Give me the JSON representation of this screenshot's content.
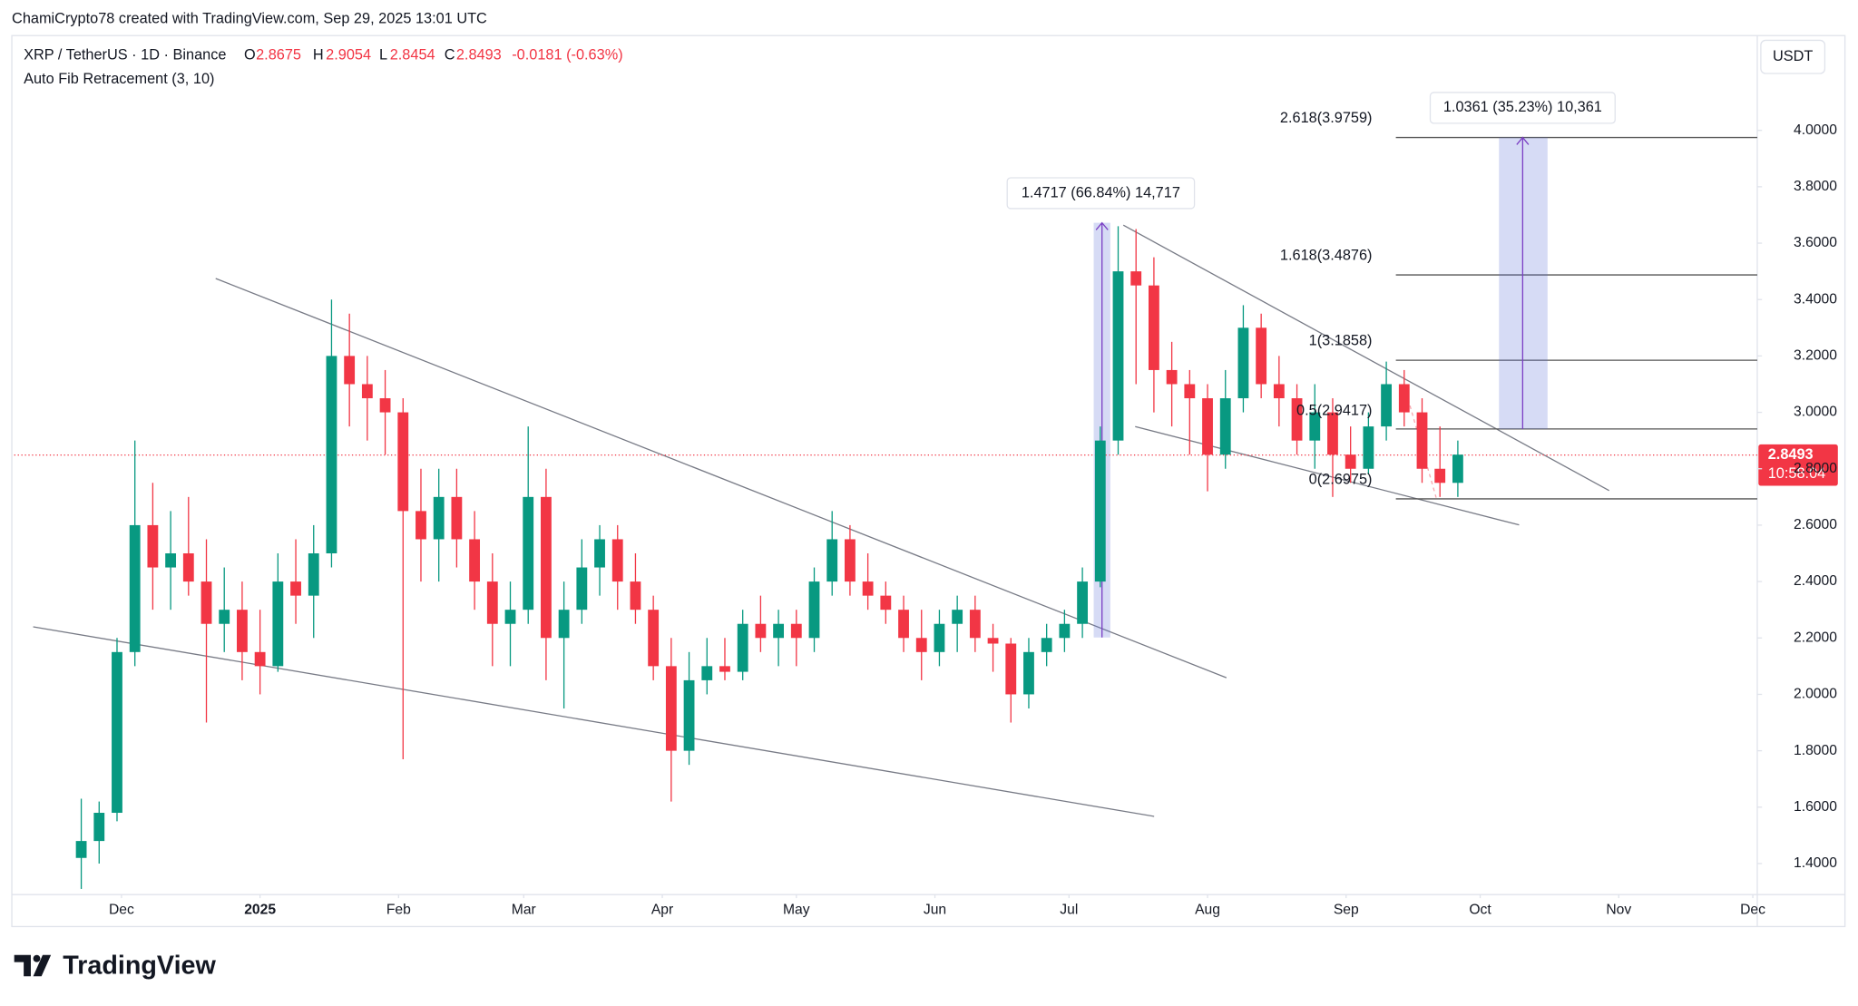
{
  "header": {
    "credit": "ChamiCrypto78 created with TradingView.com, Sep 29, 2025 13:01 UTC",
    "symbol": "XRP / TetherUS · 1D · Binance",
    "o_label": "O",
    "o": "2.8675",
    "h_label": "H",
    "h": "2.9054",
    "l_label": "L",
    "l": "2.8454",
    "c_label": "C",
    "c": "2.8493",
    "change": "-0.0181 (-0.63%)",
    "indicator": "Auto Fib Retracement (3, 10)",
    "currency": "USDT"
  },
  "price_tag": {
    "price": "2.8493",
    "countdown": "10:58:04"
  },
  "measures": [
    "1.4717 (66.84%) 14,717",
    "1.0361 (35.23%) 10,361"
  ],
  "fib_labels": [
    "2.618(3.9759)",
    "1.618(3.4876)",
    "1(3.1858)",
    "0.5(2.9417)",
    "0(2.6975)"
  ],
  "logo": "TradingView",
  "chart_data": {
    "type": "candlestick",
    "up_color": "#089981",
    "down_color": "#f23645",
    "grid": false,
    "xlim": [
      -24,
      366
    ],
    "xticks": [
      {
        "value": 0,
        "label": "Dec"
      },
      {
        "value": 31,
        "label": "2025"
      },
      {
        "value": 62,
        "label": "Feb"
      },
      {
        "value": 90,
        "label": "Mar"
      },
      {
        "value": 121,
        "label": "Apr"
      },
      {
        "value": 151,
        "label": "May"
      },
      {
        "value": 182,
        "label": "Jun"
      },
      {
        "value": 212,
        "label": "Jul"
      },
      {
        "value": 243,
        "label": "Aug"
      },
      {
        "value": 274,
        "label": "Sep"
      },
      {
        "value": 304,
        "label": "Oct"
      },
      {
        "value": 335,
        "label": "Nov"
      },
      {
        "value": 365,
        "label": "Dec"
      }
    ],
    "ylim": [
      1.29,
      4.336
    ],
    "yticks": [
      {
        "value": 1.4,
        "label": "1.4000"
      },
      {
        "value": 1.6,
        "label": "1.6000"
      },
      {
        "value": 1.8,
        "label": "1.8000"
      },
      {
        "value": 2,
        "label": "2.0000"
      },
      {
        "value": 2.2,
        "label": "2.2000"
      },
      {
        "value": 2.4,
        "label": "2.4000"
      },
      {
        "value": 2.6,
        "label": "2.6000"
      },
      {
        "value": 2.8,
        "label": "2.8000"
      },
      {
        "value": 3,
        "label": "3.0000"
      },
      {
        "value": 3.2,
        "label": "3.2000"
      },
      {
        "value": 3.4,
        "label": "3.4000"
      },
      {
        "value": 3.6,
        "label": "3.6000"
      },
      {
        "value": 3.8,
        "label": "3.8000"
      },
      {
        "value": 4,
        "label": "4.0000"
      }
    ],
    "x": [
      -9,
      -5,
      -1,
      3,
      7,
      11,
      15,
      19,
      23,
      27,
      31,
      35,
      39,
      43,
      47,
      51,
      55,
      59,
      63,
      67,
      71,
      75,
      79,
      83,
      87,
      91,
      95,
      99,
      103,
      107,
      111,
      115,
      119,
      123,
      127,
      131,
      135,
      139,
      143,
      147,
      151,
      155,
      159,
      163,
      167,
      171,
      175,
      179,
      183,
      187,
      191,
      195,
      199,
      203,
      207,
      211,
      215,
      219,
      223,
      227,
      231,
      235,
      239,
      243,
      247,
      251,
      255,
      259,
      263,
      267,
      271,
      275,
      279,
      283,
      287,
      291,
      295,
      299
    ],
    "open": [
      1.42,
      1.48,
      1.58,
      2.15,
      2.6,
      2.45,
      2.5,
      2.4,
      2.25,
      2.3,
      2.15,
      2.1,
      2.4,
      2.35,
      2.5,
      3.2,
      3.1,
      3.05,
      3,
      2.65,
      2.55,
      2.7,
      2.55,
      2.4,
      2.25,
      2.3,
      2.7,
      2.2,
      2.3,
      2.45,
      2.55,
      2.4,
      2.3,
      2.1,
      1.8,
      2.05,
      2.1,
      2.08,
      2.25,
      2.2,
      2.25,
      2.2,
      2.4,
      2.55,
      2.4,
      2.35,
      2.3,
      2.2,
      2.15,
      2.25,
      2.3,
      2.2,
      2.18,
      2,
      2.15,
      2.2,
      2.25,
      2.4,
      2.9,
      3.5,
      3.45,
      3.15,
      3.1,
      3.05,
      2.85,
      3.05,
      3.3,
      3.1,
      3.05,
      2.9,
      3,
      2.85,
      2.8,
      2.95,
      3.1,
      3,
      2.8,
      2.75
    ],
    "high": [
      1.63,
      1.62,
      2.2,
      2.9,
      2.75,
      2.65,
      2.7,
      2.55,
      2.45,
      2.4,
      2.3,
      2.5,
      2.55,
      2.6,
      3.4,
      3.35,
      3.2,
      3.15,
      3.05,
      2.8,
      2.8,
      2.8,
      2.65,
      2.5,
      2.4,
      2.95,
      2.8,
      2.4,
      2.55,
      2.6,
      2.6,
      2.5,
      2.35,
      2.2,
      2.15,
      2.2,
      2.2,
      2.3,
      2.35,
      2.3,
      2.3,
      2.45,
      2.65,
      2.6,
      2.5,
      2.4,
      2.35,
      2.3,
      2.3,
      2.35,
      2.35,
      2.25,
      2.2,
      2.2,
      2.25,
      2.3,
      2.45,
      2.95,
      3.66,
      3.65,
      3.55,
      3.25,
      3.15,
      3.1,
      3.15,
      3.38,
      3.35,
      3.2,
      3.1,
      3.1,
      3.05,
      2.95,
      3,
      3.18,
      3.15,
      3.05,
      2.95,
      2.9
    ],
    "low": [
      1.31,
      1.4,
      1.55,
      2.1,
      2.3,
      2.3,
      2.35,
      1.9,
      2.15,
      2.05,
      2,
      2.08,
      2.25,
      2.2,
      2.45,
      2.95,
      2.9,
      2.85,
      1.77,
      2.4,
      2.4,
      2.45,
      2.3,
      2.1,
      2.1,
      2.25,
      2.05,
      1.95,
      2.25,
      2.35,
      2.3,
      2.25,
      2.05,
      1.62,
      1.75,
      2,
      2.05,
      2.05,
      2.15,
      2.1,
      2.1,
      2.15,
      2.35,
      2.35,
      2.3,
      2.25,
      2.15,
      2.05,
      2.1,
      2.15,
      2.15,
      2.08,
      1.9,
      1.95,
      2.1,
      2.15,
      2.2,
      2.38,
      2.85,
      3.1,
      3,
      2.95,
      2.85,
      2.72,
      2.8,
      3,
      3.05,
      2.95,
      2.85,
      2.8,
      2.7,
      2.75,
      2.78,
      2.9,
      2.95,
      2.75,
      2.7,
      2.7
    ],
    "close": [
      1.48,
      1.58,
      2.15,
      2.6,
      2.45,
      2.5,
      2.4,
      2.25,
      2.3,
      2.15,
      2.1,
      2.4,
      2.35,
      2.5,
      3.2,
      3.1,
      3.05,
      3,
      2.65,
      2.55,
      2.7,
      2.55,
      2.4,
      2.25,
      2.3,
      2.7,
      2.2,
      2.3,
      2.45,
      2.55,
      2.4,
      2.3,
      2.1,
      1.8,
      2.05,
      2.1,
      2.08,
      2.25,
      2.2,
      2.25,
      2.2,
      2.4,
      2.55,
      2.4,
      2.35,
      2.3,
      2.2,
      2.15,
      2.25,
      2.3,
      2.2,
      2.18,
      2,
      2.15,
      2.2,
      2.25,
      2.4,
      2.9,
      3.5,
      3.45,
      3.15,
      3.1,
      3.05,
      2.85,
      3.05,
      3.3,
      3.1,
      3.05,
      2.9,
      3,
      2.85,
      2.8,
      2.95,
      3.1,
      3,
      2.8,
      2.75,
      2.85
    ]
  }
}
